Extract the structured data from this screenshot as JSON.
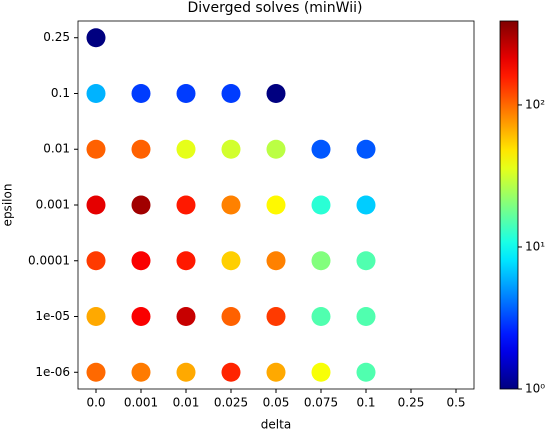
{
  "chart_data": {
    "type": "scatter",
    "title": "Diverged solves (minWii)",
    "x_label": "delta",
    "y_label": "epsilon",
    "categories": [
      "0.0",
      "0.001",
      "0.01",
      "0.025",
      "0.05",
      "0.075",
      "0.1",
      "0.25",
      "0.5"
    ],
    "y_categories": [
      "1e-06",
      "1e-05",
      "0.0001",
      "0.001",
      "0.01",
      "0.1",
      "0.25"
    ],
    "values": [
      [
        100,
        90,
        69,
        150,
        69,
        40,
        15,
        null,
        null
      ],
      [
        69,
        190,
        257,
        105,
        132,
        15,
        15,
        null,
        null
      ],
      [
        132,
        190,
        160,
        55,
        87,
        20,
        15,
        null,
        null
      ],
      [
        215,
        320,
        160,
        87,
        43,
        12,
        7,
        null,
        null
      ],
      [
        105,
        105,
        36,
        32,
        28,
        3.5,
        3.5,
        null,
        null
      ],
      [
        6,
        3,
        3,
        3,
        1,
        null,
        null,
        null,
        null
      ],
      [
        1,
        null,
        null,
        null,
        null,
        null,
        null,
        null,
        null
      ]
    ],
    "colormap": "jet",
    "color_log_scale": true,
    "clim": [
      1,
      390
    ],
    "colorbar_ticks": [
      {
        "value": 1,
        "label": "10⁰"
      },
      {
        "value": 10,
        "label": "10¹"
      },
      {
        "value": 100,
        "label": "10²"
      }
    ]
  }
}
